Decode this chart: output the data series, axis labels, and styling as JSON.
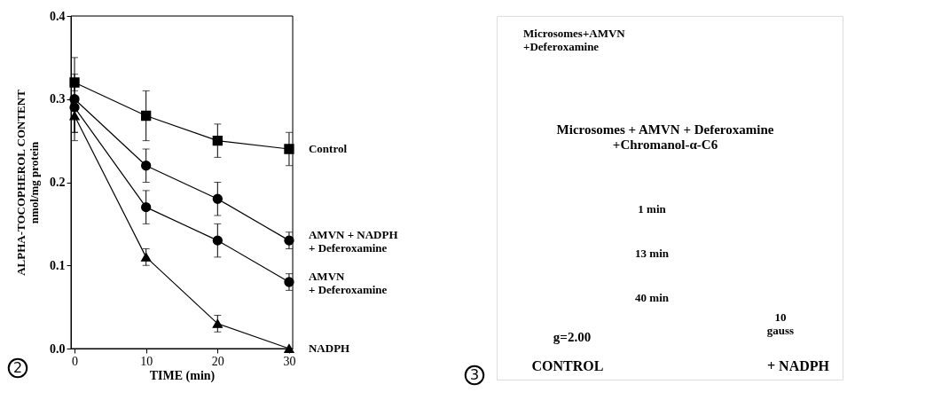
{
  "chart_data": [
    {
      "type": "line",
      "xlabel": "TIME (min)",
      "ylabel": "ALPHA-TOCOPHEROL CONTENT\nnmol/mg protein",
      "x": [
        0,
        10,
        20,
        30
      ],
      "xlim": [
        -0.5,
        30.5
      ],
      "xticks": [
        0,
        10,
        20,
        30
      ],
      "ylim": [
        0,
        0.4
      ],
      "yticks": [
        {
          "value": 0,
          "label": "0.0"
        },
        0.1,
        0.2,
        0.3,
        0.4
      ],
      "grid": false,
      "legend": "right",
      "line_style": "solid",
      "series": [
        {
          "name": "Control",
          "color": "#000000",
          "marker": "square",
          "values": [
            0.32,
            0.28,
            0.25,
            0.24
          ],
          "errors": [
            0.01,
            0.03,
            0.02,
            0.02
          ]
        },
        {
          "name": "AMVN + NADPH\n+ Deferoxamine",
          "color": "#000000",
          "marker": "circle",
          "values": [
            0.3,
            0.22,
            0.18,
            0.13
          ],
          "errors": [
            0.05,
            0.02,
            0.02,
            0.01
          ]
        },
        {
          "name": "AMVN\n+ Deferoxamine",
          "color": "#000000",
          "marker": "circle",
          "values": [
            0.29,
            0.17,
            0.13,
            0.08
          ],
          "errors": [
            0.03,
            0.02,
            0.02,
            0.01
          ]
        },
        {
          "name": "NADPH",
          "color": "#000000",
          "marker": "triangle",
          "values": [
            0.28,
            0.11,
            0.03,
            0.0
          ],
          "errors": [
            0.02,
            0.01,
            0.01,
            null
          ]
        }
      ],
      "annotations": [
        "2"
      ]
    },
    {
      "type": "other",
      "annotations": [
        "Microsomes+AMVN\n+Deferoxamine",
        "Microsomes  + AMVN + Deferoxamine\n+Chromanol-α-C6",
        "1 min",
        "13 min",
        "40 min",
        "g=2.00",
        "10\ngauss",
        "CONTROL",
        "+ NADPH",
        "3"
      ]
    }
  ]
}
